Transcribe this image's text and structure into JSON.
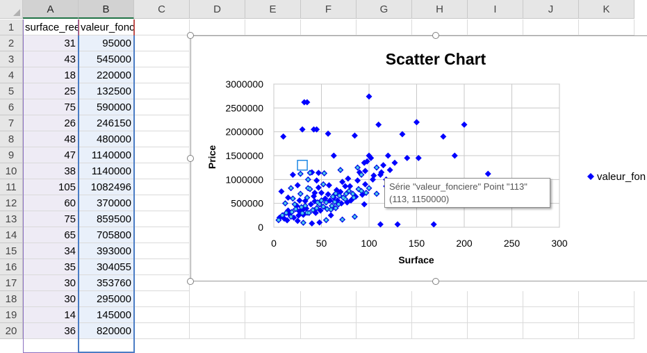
{
  "columns": [
    "A",
    "B",
    "C",
    "D",
    "E",
    "F",
    "G",
    "H",
    "I",
    "J",
    "K"
  ],
  "row_numbers": [
    "1",
    "2",
    "3",
    "4",
    "5",
    "6",
    "7",
    "8",
    "9",
    "10",
    "11",
    "12",
    "13",
    "14",
    "15",
    "16",
    "17",
    "18",
    "19",
    "20"
  ],
  "header_row": {
    "a": "surface_reelle_bati",
    "b": "valeur_fonciere"
  },
  "rows": [
    {
      "a": "31",
      "b": "95000"
    },
    {
      "a": "43",
      "b": "545000"
    },
    {
      "a": "18",
      "b": "220000"
    },
    {
      "a": "25",
      "b": "132500"
    },
    {
      "a": "75",
      "b": "590000"
    },
    {
      "a": "26",
      "b": "246150"
    },
    {
      "a": "48",
      "b": "480000"
    },
    {
      "a": "47",
      "b": "1140000"
    },
    {
      "a": "38",
      "b": "1140000"
    },
    {
      "a": "105",
      "b": "1082496"
    },
    {
      "a": "60",
      "b": "370000"
    },
    {
      "a": "75",
      "b": "859500"
    },
    {
      "a": "65",
      "b": "705800"
    },
    {
      "a": "34",
      "b": "393000"
    },
    {
      "a": "35",
      "b": "304055"
    },
    {
      "a": "30",
      "b": "353760"
    },
    {
      "a": "30",
      "b": "295000"
    },
    {
      "a": "14",
      "b": "145000"
    },
    {
      "a": "36",
      "b": "820000"
    }
  ],
  "colors": {
    "marker": "#0000ff",
    "selected_marker": "#4fc3f7",
    "header_bg": "#e6e6e6",
    "selection_border": "#4a7cc4"
  },
  "chart_data": {
    "type": "scatter",
    "title": "Scatter Chart",
    "xlabel": "Surface",
    "ylabel": "Price",
    "xlim": [
      0,
      300
    ],
    "ylim": [
      0,
      3000000
    ],
    "xticks": [
      "0",
      "50",
      "100",
      "150",
      "200",
      "250",
      "300"
    ],
    "yticks": [
      "0",
      "500000",
      "1000000",
      "1500000",
      "2000000",
      "2500000",
      "3000000"
    ],
    "grid": true,
    "legend_position": "right",
    "series": [
      {
        "name": "valeur_fon",
        "points": [
          [
            31,
            95000
          ],
          [
            43,
            545000
          ],
          [
            18,
            220000
          ],
          [
            25,
            132500
          ],
          [
            75,
            590000
          ],
          [
            26,
            246150
          ],
          [
            48,
            480000
          ],
          [
            47,
            1140000
          ],
          [
            38,
            1140000
          ],
          [
            105,
            1082496
          ],
          [
            60,
            370000
          ],
          [
            75,
            859500
          ],
          [
            65,
            705800
          ],
          [
            34,
            393000
          ],
          [
            35,
            304055
          ],
          [
            30,
            353760
          ],
          [
            30,
            295000
          ],
          [
            14,
            145000
          ],
          [
            36,
            820000
          ],
          [
            32,
            2620000
          ],
          [
            35,
            2620000
          ],
          [
            100,
            2740000
          ],
          [
            10,
            1900000
          ],
          [
            30,
            2050000
          ],
          [
            42,
            2050000
          ],
          [
            45,
            2050000
          ],
          [
            57,
            1960000
          ],
          [
            85,
            1920000
          ],
          [
            110,
            2150000
          ],
          [
            150,
            2200000
          ],
          [
            200,
            2150000
          ],
          [
            178,
            1900000
          ],
          [
            135,
            1950000
          ],
          [
            190,
            1500000
          ],
          [
            225,
            1120000
          ],
          [
            168,
            60000
          ],
          [
            130,
            60000
          ],
          [
            112,
            60000
          ],
          [
            100,
            1500000
          ],
          [
            102,
            1450000
          ],
          [
            95,
            1350000
          ],
          [
            120,
            1500000
          ],
          [
            127,
            1350000
          ],
          [
            140,
            1450000
          ],
          [
            152,
            1450000
          ],
          [
            118,
            1000000
          ],
          [
            112,
            1100000
          ],
          [
            20,
            1100000
          ],
          [
            28,
            1120000
          ],
          [
            40,
            1150000
          ],
          [
            53,
            1130000
          ],
          [
            63,
            1500000
          ],
          [
            70,
            1200000
          ],
          [
            78,
            1020000
          ],
          [
            88,
            1250000
          ],
          [
            90,
            1150000
          ],
          [
            98,
            1380000
          ],
          [
            8,
            750000
          ],
          [
            12,
            500000
          ],
          [
            15,
            350000
          ],
          [
            20,
            600000
          ],
          [
            24,
            450000
          ],
          [
            28,
            700000
          ],
          [
            33,
            550000
          ],
          [
            38,
            800000
          ],
          [
            42,
            650000
          ],
          [
            45,
            400000
          ],
          [
            50,
            720000
          ],
          [
            55,
            520000
          ],
          [
            58,
            880000
          ],
          [
            62,
            640000
          ],
          [
            66,
            780000
          ],
          [
            68,
            480000
          ],
          [
            72,
            950000
          ],
          [
            76,
            700000
          ],
          [
            80,
            860000
          ],
          [
            84,
            620000
          ],
          [
            88,
            980000
          ],
          [
            92,
            760000
          ],
          [
            96,
            900000
          ],
          [
            100,
            820000
          ],
          [
            104,
            1000000
          ],
          [
            108,
            700000
          ],
          [
            118,
            860000
          ],
          [
            125,
            600000
          ],
          [
            132,
            880000
          ],
          [
            5,
            150000
          ],
          [
            6,
            200000
          ],
          [
            9,
            250000
          ],
          [
            11,
            180000
          ],
          [
            13,
            300000
          ],
          [
            16,
            280000
          ],
          [
            19,
            320000
          ],
          [
            21,
            200000
          ],
          [
            23,
            380000
          ],
          [
            27,
            330000
          ],
          [
            29,
            420000
          ],
          [
            31,
            260000
          ],
          [
            37,
            300000
          ],
          [
            39,
            480000
          ],
          [
            41,
            360000
          ],
          [
            44,
            300000
          ],
          [
            46,
            520000
          ],
          [
            49,
            350000
          ],
          [
            52,
            430000
          ],
          [
            54,
            600000
          ],
          [
            56,
            380000
          ],
          [
            59,
            560000
          ],
          [
            61,
            450000
          ],
          [
            63,
            620000
          ],
          [
            65,
            400000
          ],
          [
            67,
            560000
          ],
          [
            69,
            660000
          ],
          [
            71,
            500000
          ],
          [
            73,
            620000
          ],
          [
            77,
            520000
          ],
          [
            79,
            760000
          ],
          [
            81,
            560000
          ],
          [
            83,
            700000
          ],
          [
            86,
            640000
          ],
          [
            89,
            800000
          ],
          [
            93,
            680000
          ],
          [
            97,
            720000
          ],
          [
            40,
            80000
          ],
          [
            55,
            150000
          ],
          [
            48,
            100000
          ],
          [
            72,
            160000
          ],
          [
            60,
            250000
          ],
          [
            85,
            220000
          ],
          [
            95,
            480000
          ],
          [
            52,
            900000
          ],
          [
            45,
            980000
          ],
          [
            36,
            1000000
          ],
          [
            25,
            880000
          ],
          [
            18,
            820000
          ],
          [
            15,
            620000
          ],
          [
            35,
            620000
          ],
          [
            43,
            720000
          ],
          [
            50,
            560000
          ],
          [
            57,
            690000
          ],
          [
            64,
            530000
          ],
          [
            70,
            740000
          ],
          [
            33,
            450000
          ],
          [
            27,
            560000
          ],
          [
            22,
            480000
          ],
          [
            47,
            830000
          ],
          [
            113,
            1150000
          ],
          [
            122,
            1200000
          ],
          [
            108,
            1250000
          ],
          [
            115,
            1300000
          ],
          [
            92,
            1100000
          ],
          [
            96,
            1180000
          ]
        ]
      }
    ],
    "selected_point": {
      "series": "valeur_fonciere",
      "index": "113",
      "x": 113,
      "y": 1150000
    }
  },
  "tooltip": {
    "line1": "Série \"valeur_fonciere\" Point \"113\"",
    "line2": "(113, 1150000)"
  }
}
